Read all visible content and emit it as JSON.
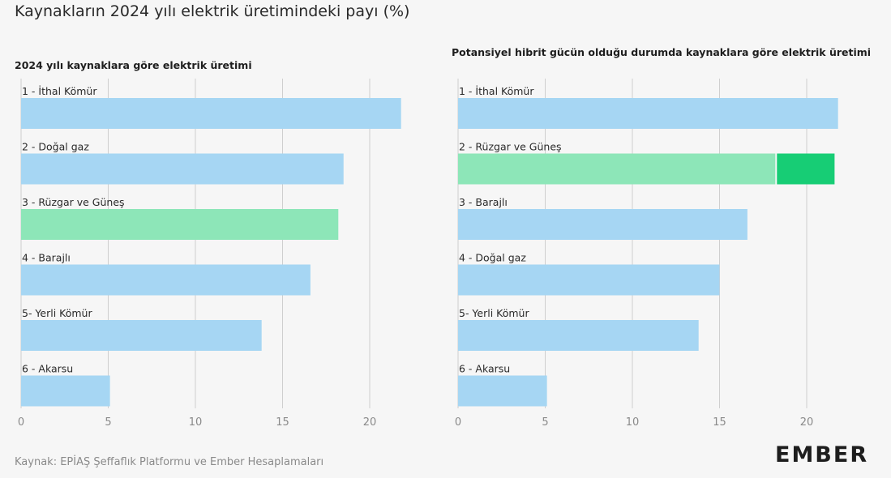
{
  "title": "Kaynakların 2024 yılı elektrik üretimindeki payı (%)",
  "source": "Kaynak: EPİAŞ Şeffaflık Platformu ve Ember Hesaplamaları",
  "logo": "EMBER",
  "colors": {
    "default_bar": "#a6d6f3",
    "wind_solar": "#8de6b8",
    "hybrid": "#17cd75",
    "grid": "#cfcfcf",
    "tick": "#8a8a8a"
  },
  "chart_data": [
    {
      "type": "bar",
      "orientation": "horizontal",
      "title": "2024 yılı kaynaklara göre elektrik üretimi",
      "categories": [
        "1 - İthal Kömür",
        "2 - Doğal gaz",
        "3 - Rüzgar ve Güneş",
        "4 - Barajlı",
        "5- Yerli Kömür",
        "6 - Akarsu"
      ],
      "values": [
        21.8,
        18.5,
        18.2,
        16.6,
        13.8,
        5.1
      ],
      "highlight": [
        false,
        false,
        true,
        false,
        false,
        false
      ],
      "xticks": [
        0,
        5,
        10,
        15,
        20
      ],
      "xlim": [
        0,
        22.5
      ],
      "grid": true
    },
    {
      "type": "bar",
      "orientation": "horizontal",
      "stacked": true,
      "title": "Potansiyel hibrit gücün olduğu durumda kaynaklara göre elektrik üretimi",
      "categories": [
        "1 - İthal Kömür",
        "2 - Rüzgar ve Güneş",
        "3 - Barajlı",
        "4 - Doğal gaz",
        "5- Yerli Kömür",
        "6 - Akarsu"
      ],
      "values": [
        21.8,
        18.2,
        16.6,
        15.0,
        13.8,
        5.1
      ],
      "hybrid_values": [
        0,
        3.4,
        0,
        0,
        0,
        0
      ],
      "highlight": [
        false,
        true,
        false,
        false,
        false,
        false
      ],
      "xticks": [
        0,
        5,
        10,
        15,
        20
      ],
      "xlim": [
        0,
        22.5
      ],
      "grid": true
    }
  ]
}
